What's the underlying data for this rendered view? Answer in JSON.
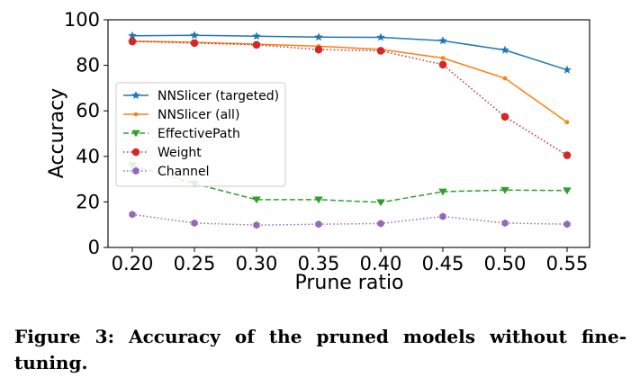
{
  "chart_data": {
    "type": "line",
    "xlabel": "Prune ratio",
    "ylabel": "Accuracy",
    "x": [
      0.2,
      0.25,
      0.3,
      0.35,
      0.4,
      0.45,
      0.5,
      0.55
    ],
    "x_tick_labels": [
      "0.20",
      "0.25",
      "0.30",
      "0.35",
      "0.40",
      "0.45",
      "0.50",
      "0.55"
    ],
    "y_ticks": [
      0,
      20,
      40,
      60,
      80,
      100
    ],
    "ylim": [
      0,
      100
    ],
    "grid": false,
    "legend_position": "middle-left",
    "series": [
      {
        "name": "NNSlicer (targeted)",
        "color": "#1f77b4",
        "line": "solid",
        "marker": "star",
        "values": [
          93,
          93.2,
          92.8,
          92.4,
          92.3,
          90.8,
          86.7,
          78
        ]
      },
      {
        "name": "NNSlicer (all)",
        "color": "#ff7f0e",
        "line": "solid",
        "marker": "point",
        "values": [
          90.6,
          90.1,
          89.3,
          88.4,
          87,
          83.2,
          74.3,
          55
        ]
      },
      {
        "name": "EffectivePath",
        "color": "#2ca02c",
        "line": "dashed",
        "marker": "triangle-down",
        "values": [
          36,
          28,
          21,
          21,
          19.8,
          24.5,
          25.2,
          25
        ]
      },
      {
        "name": "Weight",
        "color": "#d62728",
        "line": "dotted",
        "marker": "circle",
        "values": [
          90.5,
          89.8,
          89,
          86.9,
          86.4,
          80.3,
          57.4,
          40.5
        ]
      },
      {
        "name": "Channel",
        "color": "#9467bd",
        "line": "dotted",
        "marker": "hexagon",
        "values": [
          14.5,
          10.7,
          9.8,
          10.2,
          10.5,
          13.6,
          10.7,
          10.2
        ]
      }
    ]
  },
  "caption": "Figure 3: Accuracy of the pruned models without fine-tuning."
}
